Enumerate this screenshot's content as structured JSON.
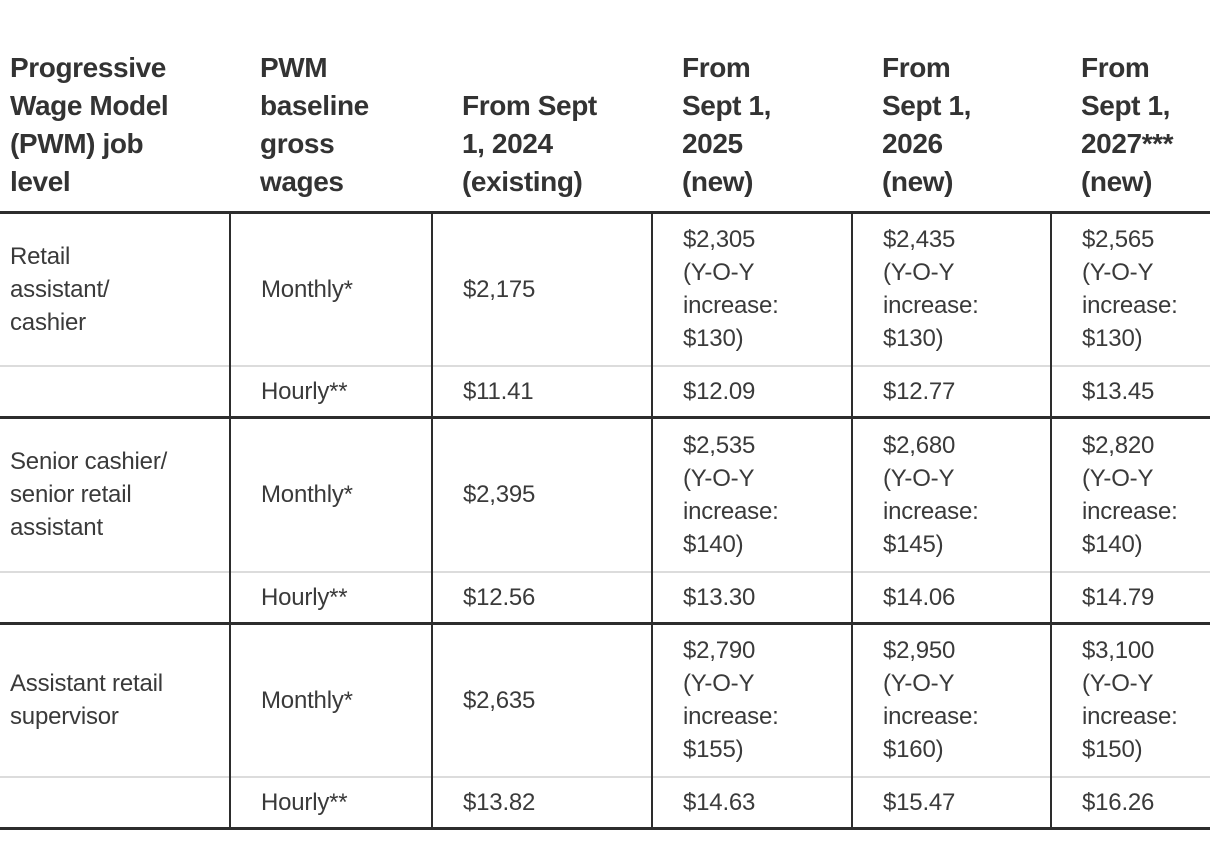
{
  "colors": {
    "background": "#ffffff",
    "text": "#3a3a3a",
    "heavy_rule": "#2d2d2d",
    "light_rule": "#dcdcdc"
  },
  "table": {
    "header": [
      "Progressive\nWage Model\n(PWM) job\nlevel",
      "PWM\nbaseline\ngross\nwages",
      "From Sept\n1, 2024\n(existing)",
      "From\nSept 1,\n2025\n(new)",
      "From\nSept 1,\n2026\n(new)",
      "From\nSept 1,\n2027***\n(new)"
    ],
    "groups": [
      {
        "job_level": "Retail\nassistant/\ncashier",
        "monthly": {
          "basis": "Monthly*",
          "y2024": "$2,175",
          "y2025": "$2,305\n(Y-O-Y\nincrease:\n$130)",
          "y2026": "$2,435\n(Y-O-Y\nincrease:\n$130)",
          "y2027": "$2,565\n(Y-O-Y\nincrease:\n$130)"
        },
        "hourly": {
          "basis": "Hourly**",
          "y2024": "$11.41",
          "y2025": "$12.09",
          "y2026": "$12.77",
          "y2027": "$13.45"
        }
      },
      {
        "job_level": "Senior cashier/\nsenior retail\nassistant",
        "monthly": {
          "basis": "Monthly*",
          "y2024": "$2,395",
          "y2025": "$2,535\n(Y-O-Y\nincrease:\n$140)",
          "y2026": "$2,680\n(Y-O-Y\nincrease:\n$145)",
          "y2027": "$2,820\n(Y-O-Y\nincrease:\n$140)"
        },
        "hourly": {
          "basis": "Hourly**",
          "y2024": "$12.56",
          "y2025": "$13.30",
          "y2026": "$14.06",
          "y2027": "$14.79"
        }
      },
      {
        "job_level": "Assistant retail\nsupervisor",
        "monthly": {
          "basis": "Monthly*",
          "y2024": "$2,635",
          "y2025": "$2,790\n(Y-O-Y\nincrease:\n$155)",
          "y2026": "$2,950\n(Y-O-Y\nincrease:\n$160)",
          "y2027": "$3,100\n(Y-O-Y\nincrease:\n$150)"
        },
        "hourly": {
          "basis": "Hourly**",
          "y2024": "$13.82",
          "y2025": "$14.63",
          "y2026": "$15.47",
          "y2027": "$16.26"
        }
      }
    ]
  },
  "chart_data": {
    "type": "table",
    "columns": [
      "Progressive Wage Model (PWM) job level",
      "PWM baseline gross wages",
      "From Sept 1, 2024 (existing)",
      "From Sept 1, 2025 (new)",
      "From Sept 1, 2026 (new)",
      "From Sept 1, 2027*** (new)"
    ],
    "rows": [
      [
        "Retail assistant/cashier",
        "Monthly*",
        "$2,175",
        "$2,305 (Y-O-Y increase: $130)",
        "$2,435 (Y-O-Y increase: $130)",
        "$2,565 (Y-O-Y increase: $130)"
      ],
      [
        "",
        "Hourly**",
        "$11.41",
        "$12.09",
        "$12.77",
        "$13.45"
      ],
      [
        "Senior cashier/senior retail assistant",
        "Monthly*",
        "$2,395",
        "$2,535 (Y-O-Y increase: $140)",
        "$2,680 (Y-O-Y increase: $145)",
        "$2,820 (Y-O-Y increase: $140)"
      ],
      [
        "",
        "Hourly**",
        "$12.56",
        "$13.30",
        "$14.06",
        "$14.79"
      ],
      [
        "Assistant retail supervisor",
        "Monthly*",
        "$2,635",
        "$2,790 (Y-O-Y increase: $155)",
        "$2,950 (Y-O-Y increase: $160)",
        "$3,100 (Y-O-Y increase: $150)"
      ],
      [
        "",
        "Hourly**",
        "$13.82",
        "$14.63",
        "$15.47",
        "$16.26"
      ]
    ]
  }
}
